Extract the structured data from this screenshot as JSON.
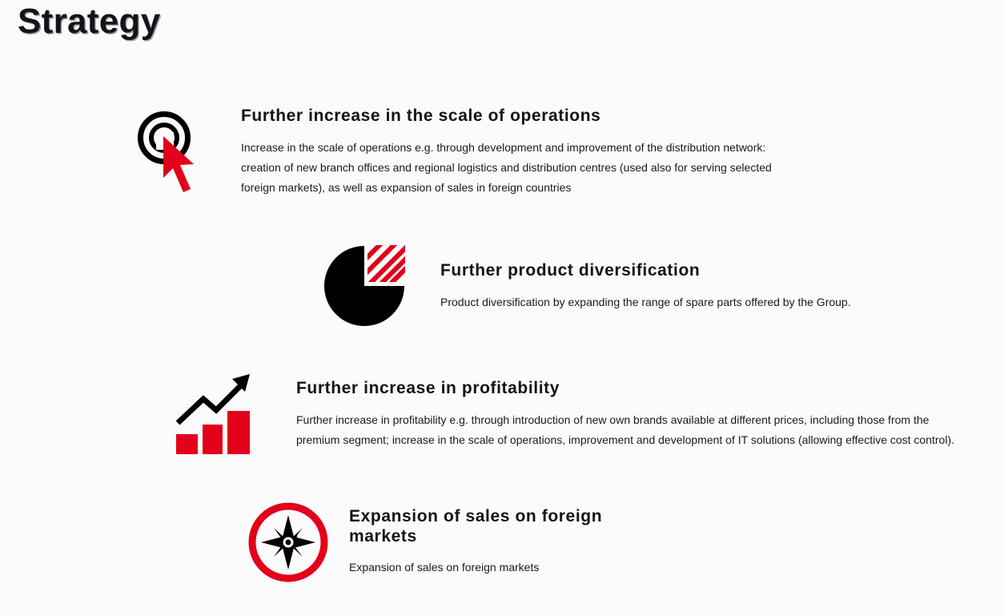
{
  "page": {
    "title": "Strategy"
  },
  "colors": {
    "accent": "#e2001a",
    "dark": "#000000",
    "background": "#fbfbfc"
  },
  "items": [
    {
      "icon": "target-cursor-icon",
      "heading": "Further increase in the scale of operations",
      "text": "Increase in the scale of operations e.g. through development and improvement of the distribution network: creation of new branch offices and regional logistics and distribution centres (used also for serving selected foreign markets), as well as expansion of sales in foreign countries"
    },
    {
      "icon": "pie-chart-icon",
      "heading": "Further product diversification",
      "text": "Product diversification by expanding the range of spare parts offered by the Group."
    },
    {
      "icon": "growth-chart-icon",
      "heading": "Further increase in profitability",
      "text": "Further increase in profitability e.g. through introduction of new own brands available at different prices, including those from the premium segment; increase in the scale of operations, improvement and development of IT solutions (allowing effective cost control)."
    },
    {
      "icon": "compass-icon",
      "heading": "Expansion of sales on foreign markets",
      "text": "Expansion of sales on foreign markets"
    }
  ]
}
